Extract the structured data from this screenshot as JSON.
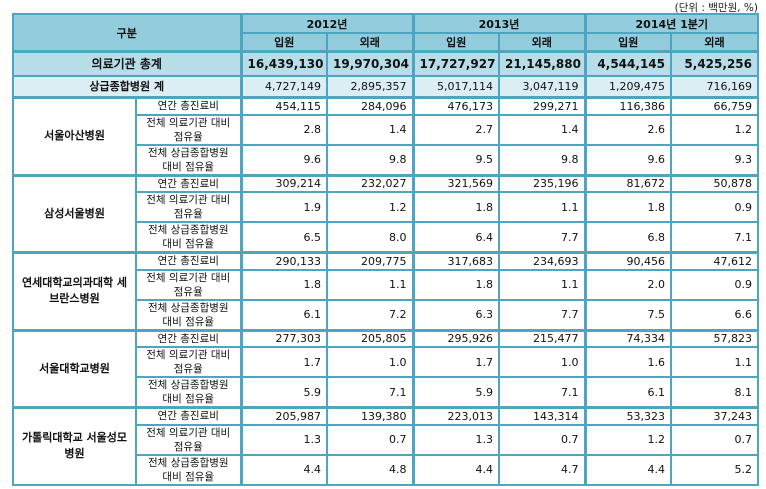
{
  "unit": "(단위 : 백만원, %)",
  "header": {
    "category": "구분",
    "years": [
      "2012년",
      "2013년",
      "2014년 1분기"
    ],
    "inpatient": "입원",
    "outpatient": "외래"
  },
  "total": {
    "label": "의료기관 총계",
    "values": [
      "16,439,130",
      "19,970,304",
      "17,727,927",
      "21,145,880",
      "4,544,145",
      "5,425,256"
    ]
  },
  "tertiary": {
    "label": "상급종합병원 계",
    "values": [
      "4,727,149",
      "2,895,357",
      "5,017,114",
      "3,047,119",
      "1,209,475",
      "716,169"
    ]
  },
  "row_labels": [
    "연간 총진료비",
    "전체 의료기관 대비 점유율",
    "전체 상급종합병원 대비 점유율"
  ],
  "hospitals": [
    {
      "name": "서울아산병원",
      "rows": [
        [
          "454,115",
          "284,096",
          "476,173",
          "299,271",
          "116,386",
          "66,759"
        ],
        [
          "2.8",
          "1.4",
          "2.7",
          "1.4",
          "2.6",
          "1.2"
        ],
        [
          "9.6",
          "9.8",
          "9.5",
          "9.8",
          "9.6",
          "9.3"
        ]
      ]
    },
    {
      "name": "삼성서울병원",
      "rows": [
        [
          "309,214",
          "232,027",
          "321,569",
          "235,196",
          "81,672",
          "50,878"
        ],
        [
          "1.9",
          "1.2",
          "1.8",
          "1.1",
          "1.8",
          "0.9"
        ],
        [
          "6.5",
          "8.0",
          "6.4",
          "7.7",
          "6.8",
          "7.1"
        ]
      ]
    },
    {
      "name": "연세대학교의과대학 세브란스병원",
      "rows": [
        [
          "290,133",
          "209,775",
          "317,683",
          "234,693",
          "90,456",
          "47,612"
        ],
        [
          "1.8",
          "1.1",
          "1.8",
          "1.1",
          "2.0",
          "0.9"
        ],
        [
          "6.1",
          "7.2",
          "6.3",
          "7.7",
          "7.5",
          "6.6"
        ]
      ]
    },
    {
      "name": "서울대학교병원",
      "rows": [
        [
          "277,303",
          "205,805",
          "295,926",
          "215,477",
          "74,334",
          "57,823"
        ],
        [
          "1.7",
          "1.0",
          "1.7",
          "1.0",
          "1.6",
          "1.1"
        ],
        [
          "5.9",
          "7.1",
          "5.9",
          "7.1",
          "6.1",
          "8.1"
        ]
      ]
    },
    {
      "name": "가톨릭대학교 서울성모병원",
      "rows": [
        [
          "205,987",
          "139,380",
          "223,013",
          "143,314",
          "53,323",
          "37,243"
        ],
        [
          "1.3",
          "0.7",
          "1.3",
          "0.7",
          "1.2",
          "0.7"
        ],
        [
          "4.4",
          "4.8",
          "4.4",
          "4.7",
          "4.4",
          "5.2"
        ]
      ]
    }
  ]
}
